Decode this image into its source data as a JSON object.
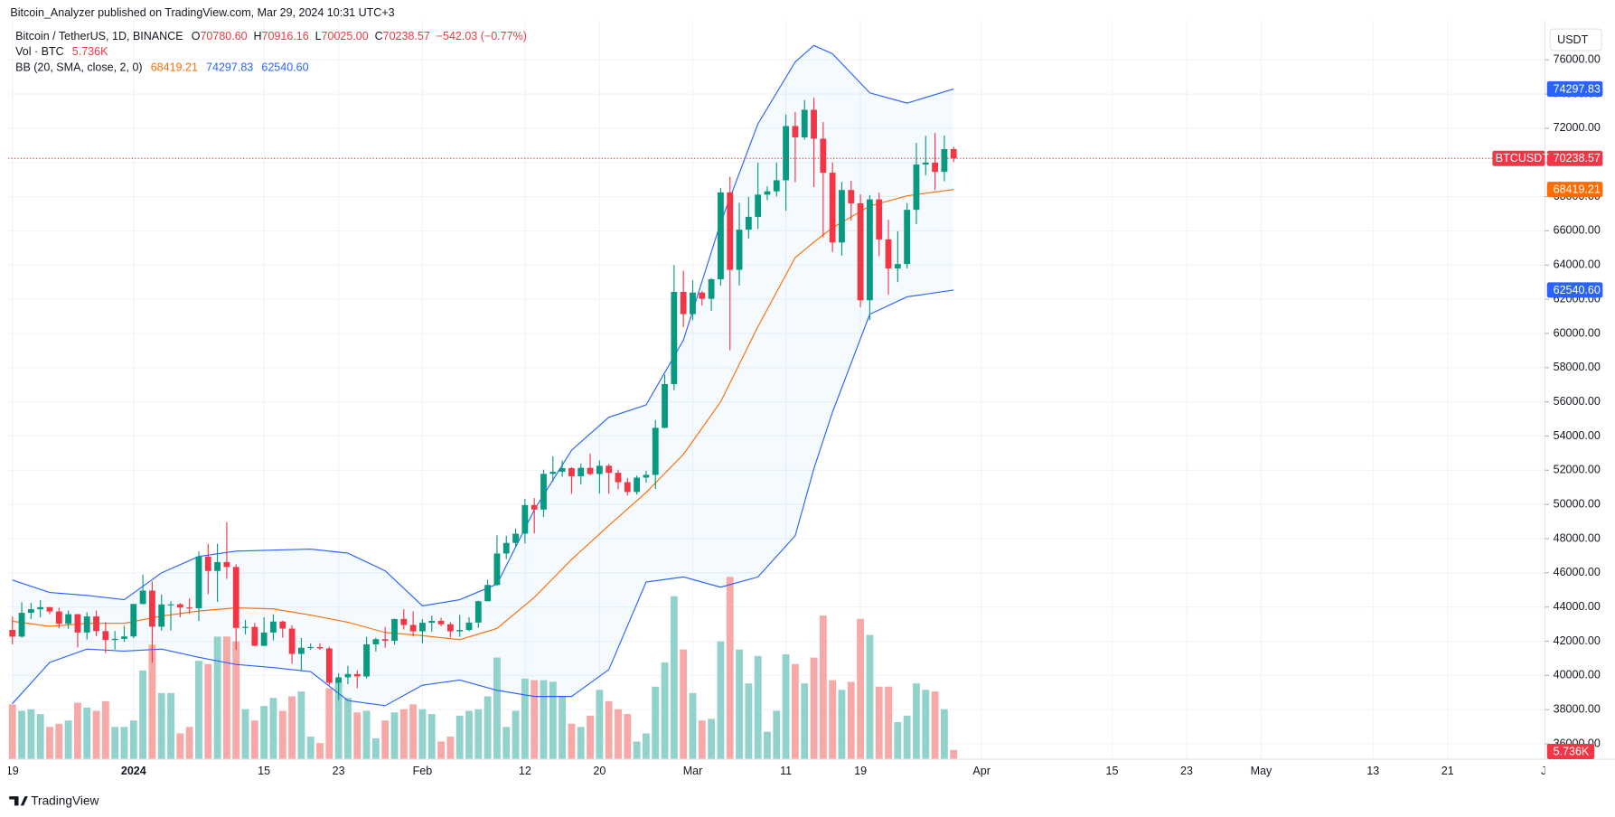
{
  "header": {
    "published": "Bitcoin_Analyzer published on TradingView.com, Mar 29, 2024 10:31 UTC+3",
    "footer": "TradingView"
  },
  "chart_data": {
    "type": "candlestick",
    "title": "Bitcoin / TetherUS, 1D, BINANCE",
    "ohlc_legend": [
      {
        "key": "O",
        "value": "70780.60"
      },
      {
        "key": "H",
        "value": "70916.16"
      },
      {
        "key": "L",
        "value": "70025.00"
      },
      {
        "key": "C",
        "value": "70238.57"
      }
    ],
    "change": "−542.03 (−0.77%)",
    "currency": "USDT",
    "symbol": "BTCUSDT",
    "x": [
      "2023-12-19",
      "2023-12-20",
      "2023-12-21",
      "2023-12-22",
      "2023-12-23",
      "2023-12-24",
      "2023-12-25",
      "2023-12-26",
      "2023-12-27",
      "2023-12-28",
      "2023-12-29",
      "2023-12-30",
      "2023-12-31",
      "2024-01-01",
      "2024-01-02",
      "2024-01-03",
      "2024-01-04",
      "2024-01-05",
      "2024-01-06",
      "2024-01-07",
      "2024-01-08",
      "2024-01-09",
      "2024-01-10",
      "2024-01-11",
      "2024-01-12",
      "2024-01-13",
      "2024-01-14",
      "2024-01-15",
      "2024-01-16",
      "2024-01-17",
      "2024-01-18",
      "2024-01-19",
      "2024-01-20",
      "2024-01-21",
      "2024-01-22",
      "2024-01-23",
      "2024-01-24",
      "2024-01-25",
      "2024-01-26",
      "2024-01-27",
      "2024-01-28",
      "2024-01-29",
      "2024-01-30",
      "2024-01-31",
      "2024-02-01",
      "2024-02-02",
      "2024-02-03",
      "2024-02-04",
      "2024-02-05",
      "2024-02-06",
      "2024-02-07",
      "2024-02-08",
      "2024-02-09",
      "2024-02-10",
      "2024-02-11",
      "2024-02-12",
      "2024-02-13",
      "2024-02-14",
      "2024-02-15",
      "2024-02-16",
      "2024-02-17",
      "2024-02-18",
      "2024-02-19",
      "2024-02-20",
      "2024-02-21",
      "2024-02-22",
      "2024-02-23",
      "2024-02-24",
      "2024-02-25",
      "2024-02-26",
      "2024-02-27",
      "2024-02-28",
      "2024-02-29",
      "2024-03-01",
      "2024-03-02",
      "2024-03-03",
      "2024-03-04",
      "2024-03-05",
      "2024-03-06",
      "2024-03-07",
      "2024-03-08",
      "2024-03-09",
      "2024-03-10",
      "2024-03-11",
      "2024-03-12",
      "2024-03-13",
      "2024-03-14",
      "2024-03-15",
      "2024-03-16",
      "2024-03-17",
      "2024-03-18",
      "2024-03-19",
      "2024-03-20",
      "2024-03-21",
      "2024-03-22",
      "2024-03-23",
      "2024-03-24",
      "2024-03-25",
      "2024-03-26",
      "2024-03-27",
      "2024-03-28",
      "2024-03-29"
    ],
    "open": [
      42660,
      42270,
      43660,
      43870,
      43990,
      43740,
      43020,
      43580,
      42510,
      43450,
      42590,
      42070,
      42140,
      42280,
      44180,
      44960,
      42850,
      44150,
      44160,
      43970,
      43930,
      46950,
      46110,
      46630,
      46340,
      42780,
      42840,
      41730,
      42510,
      43150,
      42740,
      41260,
      41620,
      41660,
      41580,
      39570,
      39890,
      40080,
      39940,
      41820,
      42120,
      42030,
      43300,
      42950,
      42580,
      43080,
      43190,
      42990,
      42580,
      42660,
      43090,
      44340,
      45290,
      47130,
      47750,
      48290,
      49960,
      49700,
      51790,
      51910,
      52120,
      51650,
      52140,
      51780,
      52260,
      51850,
      51300,
      50730,
      51570,
      51730,
      54480,
      57040,
      62430,
      61130,
      62390,
      62030,
      63170,
      68250,
      63720,
      66070,
      66820,
      68120,
      68310,
      68960,
      72130,
      71470,
      73080,
      71390,
      69400,
      65320,
      68390,
      67610,
      61940,
      67840,
      65500,
      63800,
      64060,
      67230,
      69880,
      69990,
      69450,
      70780.6
    ],
    "high": [
      43450,
      44280,
      44240,
      44400,
      44010,
      43950,
      43800,
      43600,
      43690,
      43800,
      43120,
      42600,
      42900,
      44180,
      45900,
      45500,
      44730,
      44340,
      44230,
      44500,
      47250,
      47700,
      47700,
      48970,
      46500,
      43250,
      43080,
      43400,
      43580,
      43200,
      42930,
      42190,
      41870,
      41880,
      41690,
      40130,
      40560,
      40300,
      42250,
      42200,
      42840,
      43310,
      43880,
      43750,
      43290,
      43490,
      43380,
      43120,
      43540,
      43400,
      44380,
      45600,
      48200,
      48170,
      48590,
      50330,
      50370,
      52040,
      52820,
      52570,
      52180,
      52380,
      52980,
      52570,
      52370,
      52030,
      51550,
      51690,
      51960,
      54940,
      57590,
      64000,
      63680,
      63110,
      62480,
      63230,
      68500,
      69170,
      67640,
      67990,
      69990,
      68600,
      69990,
      72800,
      72950,
      73650,
      73780,
      72360,
      70000,
      68860,
      68930,
      68130,
      68100,
      68240,
      66650,
      65980,
      67620,
      71150,
      71560,
      71730,
      71580,
      70916.16
    ],
    "low": [
      41820,
      42210,
      43300,
      43400,
      43580,
      42760,
      42730,
      41640,
      42100,
      42300,
      41300,
      41520,
      41960,
      42180,
      44150,
      40750,
      42620,
      42630,
      43400,
      43600,
      43180,
      44750,
      44300,
      45650,
      41500,
      42400,
      41720,
      41720,
      42050,
      42200,
      40680,
      40280,
      41500,
      41500,
      39430,
      38560,
      39490,
      39260,
      39820,
      41400,
      41620,
      41800,
      42680,
      42280,
      41880,
      42560,
      42880,
      42220,
      42260,
      42580,
      42780,
      44330,
      45240,
      46800,
      47550,
      47720,
      48300,
      49260,
      51320,
      51620,
      50620,
      51160,
      51700,
      50630,
      50620,
      50880,
      50520,
      50570,
      51280,
      50900,
      54450,
      56680,
      60360,
      60770,
      61630,
      61320,
      62800,
      59010,
      62810,
      65540,
      66100,
      67800,
      68020,
      67180,
      68850,
      71330,
      68560,
      65630,
      64780,
      64550,
      66600,
      61540,
      60780,
      64530,
      62260,
      63000,
      63800,
      66400,
      69250,
      68380,
      68900,
      70025
    ],
    "close": [
      42270,
      43660,
      43870,
      43990,
      43740,
      43020,
      43580,
      42510,
      43450,
      42590,
      42070,
      42140,
      42280,
      44180,
      44960,
      42850,
      44150,
      44160,
      43970,
      43930,
      46950,
      46110,
      46630,
      46340,
      42780,
      42840,
      41730,
      42510,
      43150,
      42740,
      41260,
      41620,
      41660,
      41580,
      39570,
      39890,
      40080,
      39940,
      41820,
      42120,
      42030,
      43300,
      42950,
      42580,
      43080,
      43190,
      42990,
      42580,
      42660,
      43090,
      44340,
      45290,
      47130,
      47750,
      48290,
      49960,
      49700,
      51790,
      51910,
      52120,
      51650,
      52140,
      51780,
      52260,
      51850,
      51300,
      50730,
      51570,
      51730,
      54480,
      57040,
      62430,
      61130,
      62390,
      62030,
      63170,
      68250,
      63720,
      66070,
      66820,
      68120,
      68310,
      68960,
      72130,
      71470,
      73080,
      71390,
      69400,
      65320,
      68390,
      67610,
      61940,
      67840,
      65500,
      63800,
      64060,
      67230,
      69880,
      69990,
      69450,
      70780,
      70238.57
    ],
    "up_color": "#089981",
    "down_color": "#f23645",
    "volume": {
      "name": "Vol · BTC",
      "last_label": "5.736K",
      "up_color": "#92d2cc",
      "down_color": "#f7a9a7",
      "values": [
        34000,
        30000,
        31000,
        28000,
        20000,
        22000,
        24000,
        35000,
        32000,
        30000,
        36000,
        20000,
        20000,
        24000,
        55000,
        71000,
        41000,
        41000,
        16000,
        20000,
        61000,
        59000,
        76000,
        76000,
        73000,
        31000,
        24000,
        33000,
        38000,
        30000,
        39000,
        42000,
        14000,
        10000,
        44000,
        48000,
        38000,
        29000,
        30000,
        13000,
        24000,
        29000,
        31000,
        34000,
        31000,
        28000,
        11000,
        14000,
        27000,
        30000,
        31000,
        39000,
        63000,
        20000,
        30000,
        50000,
        49000,
        49000,
        48000,
        39000,
        22000,
        20000,
        27000,
        43000,
        36000,
        31000,
        28000,
        11000,
        16000,
        45000,
        60000,
        101000,
        68000,
        41000,
        24000,
        25000,
        73000,
        113000,
        68000,
        47000,
        64000,
        17000,
        30000,
        65000,
        59000,
        47000,
        63000,
        89000,
        49000,
        43000,
        48000,
        87000,
        77000,
        45000,
        45000,
        23000,
        27000,
        47000,
        43000,
        42000,
        31000,
        5736
      ]
    },
    "bollinger": {
      "name": "BB (20, SMA, close, 2, 0)",
      "legend_values": [
        "68419.21",
        "74297.83",
        "62540.60"
      ],
      "x": [
        "2023-12-19",
        "2023-12-23",
        "2023-12-27",
        "2023-12-31",
        "2024-01-04",
        "2024-01-08",
        "2024-01-12",
        "2024-01-16",
        "2024-01-20",
        "2024-01-24",
        "2024-01-28",
        "2024-02-01",
        "2024-02-05",
        "2024-02-09",
        "2024-02-13",
        "2024-02-17",
        "2024-02-21",
        "2024-02-25",
        "2024-02-29",
        "2024-03-04",
        "2024-03-08",
        "2024-03-12",
        "2024-03-14",
        "2024-03-16",
        "2024-03-20",
        "2024-03-24",
        "2024-03-29"
      ],
      "series": [
        {
          "color": "#ff6d00",
          "values": [
            43170,
            42870,
            43050,
            43050,
            43470,
            43770,
            43950,
            43890,
            43530,
            43110,
            42510,
            42330,
            42090,
            42750,
            44560,
            46780,
            48770,
            50700,
            52930,
            56000,
            60400,
            64440,
            65340,
            66180,
            67450,
            68050,
            68419.21
          ]
        },
        {
          "color": "#2962ff",
          "values": [
            45580,
            44850,
            44680,
            44430,
            46000,
            46960,
            47270,
            47330,
            47390,
            47150,
            46120,
            44070,
            44430,
            45340,
            49680,
            53170,
            55100,
            55820,
            59610,
            66480,
            72260,
            75880,
            76840,
            76360,
            74070,
            73470,
            74297.83
          ]
        },
        {
          "color": "#2962ff",
          "values": [
            38350,
            40760,
            41540,
            41420,
            41540,
            41060,
            40640,
            40460,
            40220,
            38530,
            38230,
            39430,
            39730,
            39130,
            38770,
            38770,
            40340,
            45460,
            45760,
            45160,
            45760,
            48170,
            52080,
            55400,
            61120,
            62140,
            62540.6
          ]
        }
      ]
    },
    "price_tags": [
      {
        "value": 74297.83,
        "label": "74297.83",
        "color": "#2962ff"
      },
      {
        "value": 70238.57,
        "label": "70238.57",
        "color": "#f23645"
      },
      {
        "value": 68419.21,
        "label": "68419.21",
        "color": "#ff6d00"
      },
      {
        "value": 62540.6,
        "label": "62540.60",
        "color": "#2962ff"
      }
    ],
    "xlim": [
      "2023-12-18",
      "2024-06-02"
    ],
    "xticks": [
      {
        "value": "2023-12-19",
        "label": "19"
      },
      {
        "value": "2024-01-01",
        "label": "2024"
      },
      {
        "value": "2024-01-15",
        "label": "15"
      },
      {
        "value": "2024-01-23",
        "label": "23"
      },
      {
        "value": "2024-02-01",
        "label": "Feb"
      },
      {
        "value": "2024-02-12",
        "label": "12"
      },
      {
        "value": "2024-02-20",
        "label": "20"
      },
      {
        "value": "2024-03-01",
        "label": "Mar"
      },
      {
        "value": "2024-03-11",
        "label": "11"
      },
      {
        "value": "2024-03-19",
        "label": "19"
      },
      {
        "value": "2024-04-01",
        "label": "Apr"
      },
      {
        "value": "2024-04-15",
        "label": "15"
      },
      {
        "value": "2024-04-23",
        "label": "23"
      },
      {
        "value": "2024-05-01",
        "label": "May"
      },
      {
        "value": "2024-05-13",
        "label": "13"
      },
      {
        "value": "2024-05-21",
        "label": "21"
      },
      {
        "value": "2024-06-01",
        "label": "Jun"
      }
    ],
    "ylim": [
      35100,
      78290
    ],
    "yticks": [
      {
        "value": 36000,
        "label": "36000.00"
      },
      {
        "value": 38000,
        "label": "38000.00"
      },
      {
        "value": 40000,
        "label": "40000.00"
      },
      {
        "value": 42000,
        "label": "42000.00"
      },
      {
        "value": 44000,
        "label": "44000.00"
      },
      {
        "value": 46000,
        "label": "46000.00"
      },
      {
        "value": 48000,
        "label": "48000.00"
      },
      {
        "value": 50000,
        "label": "50000.00"
      },
      {
        "value": 52000,
        "label": "52000.00"
      },
      {
        "value": 54000,
        "label": "54000.00"
      },
      {
        "value": 56000,
        "label": "56000.00"
      },
      {
        "value": 58000,
        "label": "58000.00"
      },
      {
        "value": 60000,
        "label": "60000.00"
      },
      {
        "value": 62000,
        "label": "62000.00"
      },
      {
        "value": 64000,
        "label": "64000.00"
      },
      {
        "value": 66000,
        "label": "66000.00"
      },
      {
        "value": 68000,
        "label": "68000.00"
      },
      {
        "value": 70000,
        "label": "70000.00"
      },
      {
        "value": 72000,
        "label": "72000.00"
      },
      {
        "value": 74000,
        "label": "74000.00"
      },
      {
        "value": 76000,
        "label": "76000.00"
      }
    ],
    "grid": true
  }
}
